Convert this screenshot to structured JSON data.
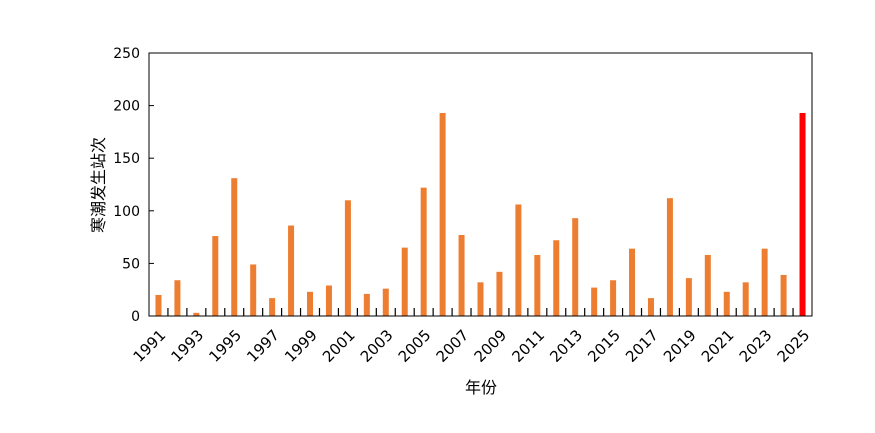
{
  "chart_data": {
    "type": "bar",
    "title": "",
    "xlabel": "年份",
    "ylabel": "寒潮发生站次",
    "ylim": [
      0,
      250
    ],
    "yticks": [
      0,
      50,
      100,
      150,
      200,
      250
    ],
    "categories": [
      1991,
      1992,
      1993,
      1994,
      1995,
      1996,
      1997,
      1998,
      1999,
      2000,
      2001,
      2002,
      2003,
      2004,
      2005,
      2006,
      2007,
      2008,
      2009,
      2010,
      2011,
      2012,
      2013,
      2014,
      2015,
      2016,
      2017,
      2018,
      2019,
      2020,
      2021,
      2022,
      2023,
      2024,
      2025
    ],
    "xtick_labels": [
      "1991",
      "1993",
      "1995",
      "1997",
      "1999",
      "2001",
      "2003",
      "2005",
      "2007",
      "2009",
      "2011",
      "2013",
      "2015",
      "2017",
      "2019",
      "2021",
      "2023",
      "2025"
    ],
    "values": [
      20,
      34,
      3,
      76,
      131,
      49,
      17,
      86,
      23,
      29,
      110,
      21,
      26,
      65,
      122,
      193,
      77,
      32,
      42,
      106,
      58,
      72,
      93,
      27,
      34,
      64,
      17,
      112,
      36,
      58,
      23,
      32,
      64,
      39,
      193
    ],
    "colors": {
      "default": "#ED7D31",
      "highlight": "#FF0000"
    },
    "highlight_category": 2025,
    "grid": false
  }
}
